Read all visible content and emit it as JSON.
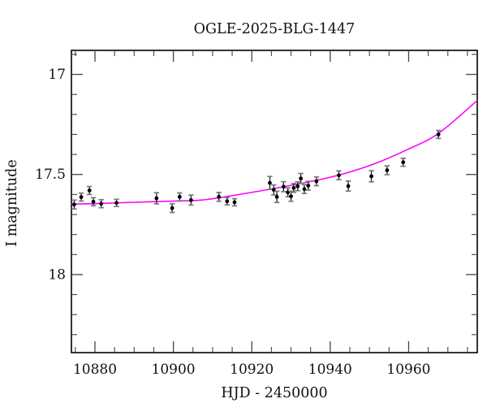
{
  "figure": {
    "background": "#ffffff"
  },
  "chart_data": {
    "type": "scatter",
    "title": "OGLE-2025-BLG-1447",
    "xlabel": "HJD - 2450000",
    "ylabel": "I magnitude",
    "grid": false,
    "legend": "none",
    "x_axis": {
      "min": 10874.0,
      "max": 10977.5,
      "major_ticks": [
        10880,
        10900,
        10920,
        10940,
        10960
      ],
      "major_tick_labels": [
        "10880",
        "10900",
        "10920",
        "10940",
        "10960"
      ],
      "minor_tick_step": 5
    },
    "y_axis": {
      "min": 16.88,
      "max": 18.39,
      "inverted": true,
      "major_ticks": [
        17.0,
        17.5,
        18.0
      ],
      "major_tick_labels": [
        "17",
        "17.5",
        "18"
      ],
      "minor_tick_step": 0.1
    },
    "series": [
      {
        "name": "I-band photometry",
        "kind": "scatter_errorbar",
        "points": [
          [
            10874.7,
            17.65,
            0.022
          ],
          [
            10876.5,
            17.613,
            0.02
          ],
          [
            10878.6,
            17.58,
            0.02
          ],
          [
            10879.6,
            17.636,
            0.02
          ],
          [
            10881.6,
            17.646,
            0.02
          ],
          [
            10885.5,
            17.642,
            0.018
          ],
          [
            10895.7,
            17.619,
            0.028
          ],
          [
            10899.7,
            17.668,
            0.022
          ],
          [
            10901.6,
            17.612,
            0.02
          ],
          [
            10904.5,
            17.628,
            0.025
          ],
          [
            10911.6,
            17.612,
            0.022
          ],
          [
            10913.7,
            17.634,
            0.018
          ],
          [
            10915.6,
            17.639,
            0.018
          ],
          [
            10924.6,
            17.542,
            0.032
          ],
          [
            10925.6,
            17.577,
            0.025
          ],
          [
            10926.4,
            17.612,
            0.028
          ],
          [
            10928.1,
            17.561,
            0.025
          ],
          [
            10929.2,
            17.589,
            0.022
          ],
          [
            10930.0,
            17.609,
            0.025
          ],
          [
            10930.7,
            17.567,
            0.022
          ],
          [
            10931.7,
            17.559,
            0.022
          ],
          [
            10932.5,
            17.52,
            0.025
          ],
          [
            10933.4,
            17.573,
            0.022
          ],
          [
            10934.4,
            17.556,
            0.022
          ],
          [
            10936.5,
            17.534,
            0.022
          ],
          [
            10942.2,
            17.504,
            0.022
          ],
          [
            10944.6,
            17.558,
            0.025
          ],
          [
            10950.5,
            17.509,
            0.028
          ],
          [
            10954.5,
            17.479,
            0.022
          ],
          [
            10958.6,
            17.439,
            0.02
          ],
          [
            10967.6,
            17.3,
            0.02
          ]
        ]
      },
      {
        "name": "microlensing model",
        "kind": "line",
        "points": [
          [
            10874.0,
            17.648
          ],
          [
            10881.0,
            17.645
          ],
          [
            10890.0,
            17.639
          ],
          [
            10900.0,
            17.633
          ],
          [
            10907.6,
            17.627
          ],
          [
            10916.1,
            17.602
          ],
          [
            10924.8,
            17.573
          ],
          [
            10934.5,
            17.537
          ],
          [
            10942.8,
            17.5
          ],
          [
            10951.1,
            17.448
          ],
          [
            10959.4,
            17.378
          ],
          [
            10967.6,
            17.295
          ],
          [
            10977.5,
            17.13
          ]
        ]
      }
    ],
    "colors": {
      "model_curve": "#ff00ff",
      "data_point": "#000000",
      "error_bar": "#1f1f1f",
      "error_cap": "#7a7a7a",
      "frame": "#000000",
      "tick": "#444444",
      "text": "#111111"
    }
  }
}
